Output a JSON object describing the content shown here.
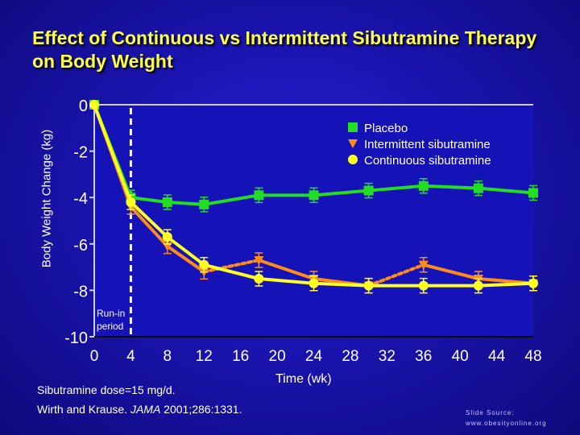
{
  "chart_data": {
    "type": "line",
    "title": "Effect of Continuous vs Intermittent Sibutramine Therapy on Body Weight",
    "xlabel": "Time (wk)",
    "ylabel": "Body Weight Change (kg)",
    "xlim": [
      0,
      48
    ],
    "ylim": [
      -10,
      0
    ],
    "xticks": [
      "0",
      "4",
      "8",
      "12",
      "16",
      "20",
      "24",
      "28",
      "32",
      "36",
      "40",
      "44",
      "48"
    ],
    "yticks": [
      "0",
      "-2",
      "-4",
      "-6",
      "-8",
      "-10"
    ],
    "annotation": "Run-in period",
    "legend_position": "top-right",
    "series": [
      {
        "name": "Placebo",
        "marker": "square",
        "color": "#22dd22",
        "points": [
          [
            0,
            0
          ],
          [
            4,
            -4.0
          ],
          [
            8,
            -4.2
          ],
          [
            12,
            -4.3
          ],
          [
            18,
            -3.9
          ],
          [
            24,
            -3.9
          ],
          [
            30,
            -3.7
          ],
          [
            36,
            -3.5
          ],
          [
            42,
            -3.6
          ],
          [
            48,
            -3.8
          ]
        ]
      },
      {
        "name": "Intermittent sibutramine",
        "marker": "triangle",
        "color": "#ff8c1a",
        "points": [
          [
            0,
            0
          ],
          [
            4,
            -4.4
          ],
          [
            8,
            -6.1
          ],
          [
            12,
            -7.2
          ],
          [
            18,
            -6.7
          ],
          [
            24,
            -7.5
          ],
          [
            30,
            -7.8
          ],
          [
            36,
            -6.9
          ],
          [
            42,
            -7.5
          ],
          [
            48,
            -7.7
          ]
        ]
      },
      {
        "name": "Continuous sibutramine",
        "marker": "circle",
        "color": "#ffff22",
        "points": [
          [
            0,
            0
          ],
          [
            4,
            -4.2
          ],
          [
            8,
            -5.7
          ],
          [
            12,
            -6.9
          ],
          [
            18,
            -7.5
          ],
          [
            24,
            -7.7
          ],
          [
            30,
            -7.8
          ],
          [
            36,
            -7.8
          ],
          [
            42,
            -7.8
          ],
          [
            48,
            -7.7
          ]
        ]
      }
    ],
    "dashed_segments_series": "Intermittent sibutramine",
    "dashed_segments": [
      [
        12,
        18
      ],
      [
        30,
        36
      ]
    ]
  },
  "footer": {
    "dose": "Sibutramine dose=15 mg/d.",
    "ref_authors": "Wirth and Krause. ",
    "ref_journal": "JAMA",
    "ref_rest": " 2001;286:1331.",
    "source1": "Slide Source:",
    "source2": "www.obesityonline.org"
  }
}
